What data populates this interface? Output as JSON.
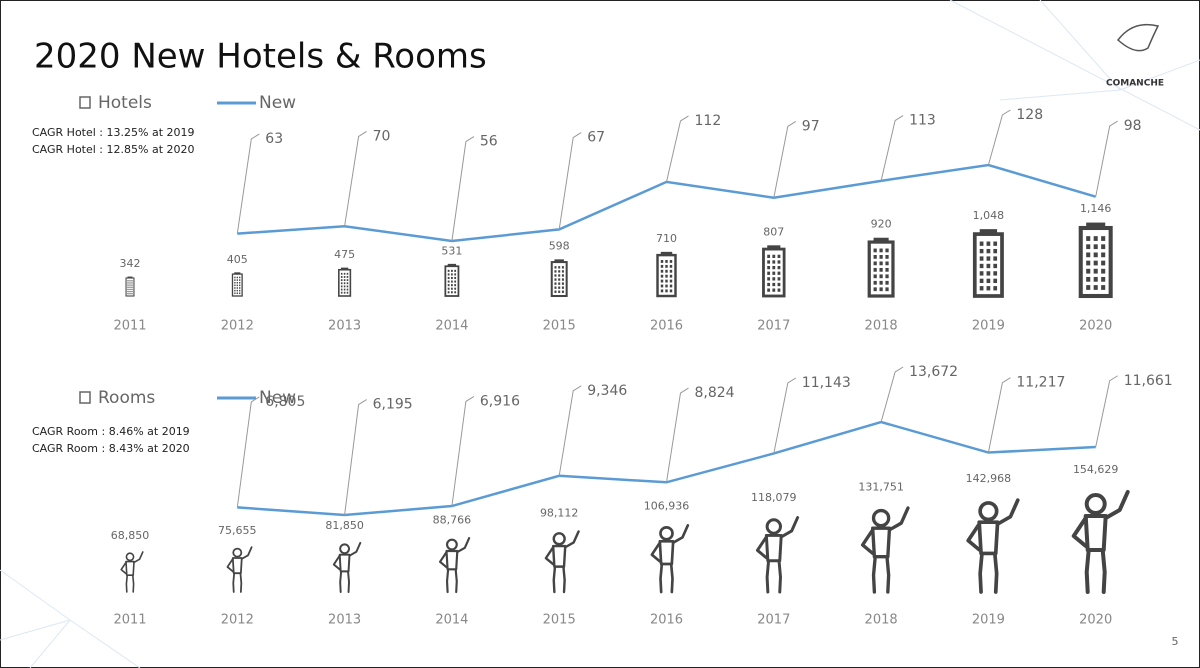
{
  "title": "2020 New Hotels & Rooms",
  "logo": "COMANCHE",
  "page_number": "5",
  "chart_data": [
    {
      "type": "line",
      "annotations": [
        "CAGR Hotel : 13.25% at 2019",
        "CAGR Hotel : 12.85% at 2020"
      ],
      "categories": [
        "2011",
        "2012",
        "2013",
        "2014",
        "2015",
        "2016",
        "2017",
        "2018",
        "2019",
        "2020"
      ],
      "series": [
        {
          "name": "Hotels",
          "color": "#444444",
          "values": [
            342,
            405,
            475,
            531,
            598,
            710,
            807,
            920,
            1048,
            1146
          ],
          "value_labels": [
            "342",
            "405",
            "475",
            "531",
            "598",
            "710",
            "807",
            "920",
            "1,048",
            "1,146"
          ]
        },
        {
          "name": "New",
          "color": "#5b9bd5",
          "values": [
            null,
            63,
            70,
            56,
            67,
            112,
            97,
            113,
            128,
            98
          ]
        }
      ]
    },
    {
      "type": "line",
      "annotations": [
        "CAGR Room : 8.46% at 2019",
        "CAGR Room : 8.43% at 2020"
      ],
      "categories": [
        "2011",
        "2012",
        "2013",
        "2014",
        "2015",
        "2016",
        "2017",
        "2018",
        "2019",
        "2020"
      ],
      "series": [
        {
          "name": "Rooms",
          "color": "#444444",
          "values": [
            68850,
            75655,
            81850,
            88766,
            98112,
            106936,
            118079,
            131751,
            142968,
            154629
          ],
          "value_labels": [
            "68,850",
            "75,655",
            "81,850",
            "88,766",
            "98,112",
            "106,936",
            "118,079",
            "131,751",
            "142,968",
            "154,629"
          ]
        },
        {
          "name": "New",
          "color": "#5b9bd5",
          "values": [
            null,
            6805,
            6195,
            6916,
            9346,
            8824,
            11143,
            13672,
            11217,
            11661
          ],
          "value_labels": [
            null,
            "6,805",
            "6,195",
            "6,916",
            "9,346",
            "8,824",
            "11,143",
            "13,672",
            "11,217",
            "11,661"
          ]
        }
      ]
    }
  ]
}
